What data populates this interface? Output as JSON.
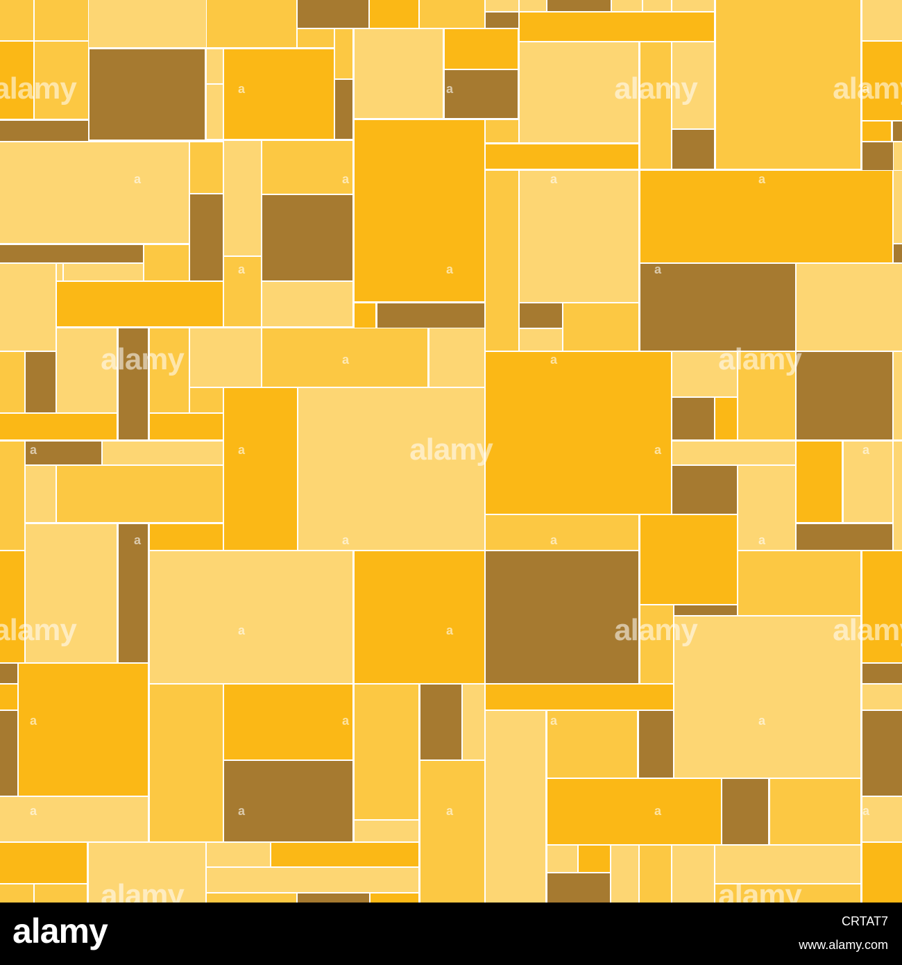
{
  "palette": {
    "light": "#FDD673",
    "medium": "#FCC843",
    "orange": "#FBB816",
    "brown": "#A67A30",
    "grout": "#FFFFFF",
    "footer": "#000000"
  },
  "watermark": {
    "word": "alamy",
    "letter": "a"
  },
  "footer": {
    "logo": "alamy",
    "image_id": "CRTAT7",
    "url": "www.alamy.com"
  }
}
